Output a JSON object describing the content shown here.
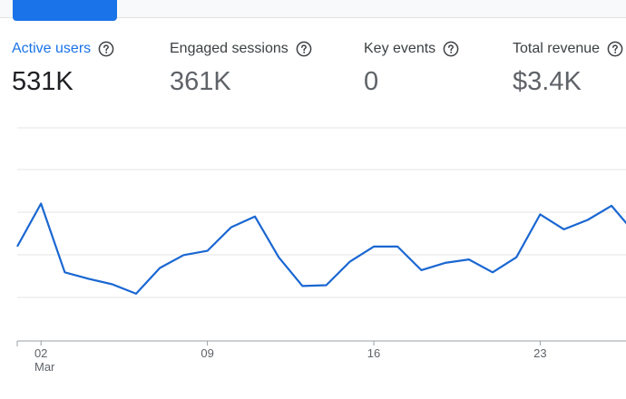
{
  "metrics": [
    {
      "label": "Active users",
      "value": "531K",
      "active": true
    },
    {
      "label": "Engaged sessions",
      "value": "361K",
      "active": false
    },
    {
      "label": "Key events",
      "value": "0",
      "active": false
    },
    {
      "label": "Total revenue",
      "value": "$3.4K",
      "active": false
    }
  ],
  "icons": {
    "help": "help-circle-icon"
  },
  "colors": {
    "accent": "#1a73e8",
    "line": "#1a67d2"
  },
  "chart_data": {
    "type": "line",
    "series_metric": "Active users",
    "x_ticks": [
      {
        "day": "02",
        "month": "Mar"
      },
      {
        "day": "09",
        "month": ""
      },
      {
        "day": "16",
        "month": ""
      },
      {
        "day": "23",
        "month": ""
      }
    ],
    "x": [
      "Mar 01",
      "Mar 02",
      "Mar 03",
      "Mar 04",
      "Mar 05",
      "Mar 06",
      "Mar 07",
      "Mar 08",
      "Mar 09",
      "Mar 10",
      "Mar 11",
      "Mar 12",
      "Mar 13",
      "Mar 14",
      "Mar 15",
      "Mar 16",
      "Mar 17",
      "Mar 18",
      "Mar 19",
      "Mar 20",
      "Mar 21",
      "Mar 22",
      "Mar 23",
      "Mar 24",
      "Mar 25",
      "Mar 26",
      "Mar 27"
    ],
    "values": [
      3.2,
      4.2,
      2.6,
      2.45,
      2.32,
      2.1,
      2.7,
      3.0,
      3.1,
      3.65,
      3.9,
      2.95,
      2.28,
      2.3,
      2.85,
      3.2,
      3.2,
      2.65,
      2.82,
      2.9,
      2.6,
      2.95,
      3.95,
      3.6,
      3.82,
      4.15,
      3.5
    ],
    "gridlines": 5,
    "grid": true,
    "legend": "none"
  }
}
